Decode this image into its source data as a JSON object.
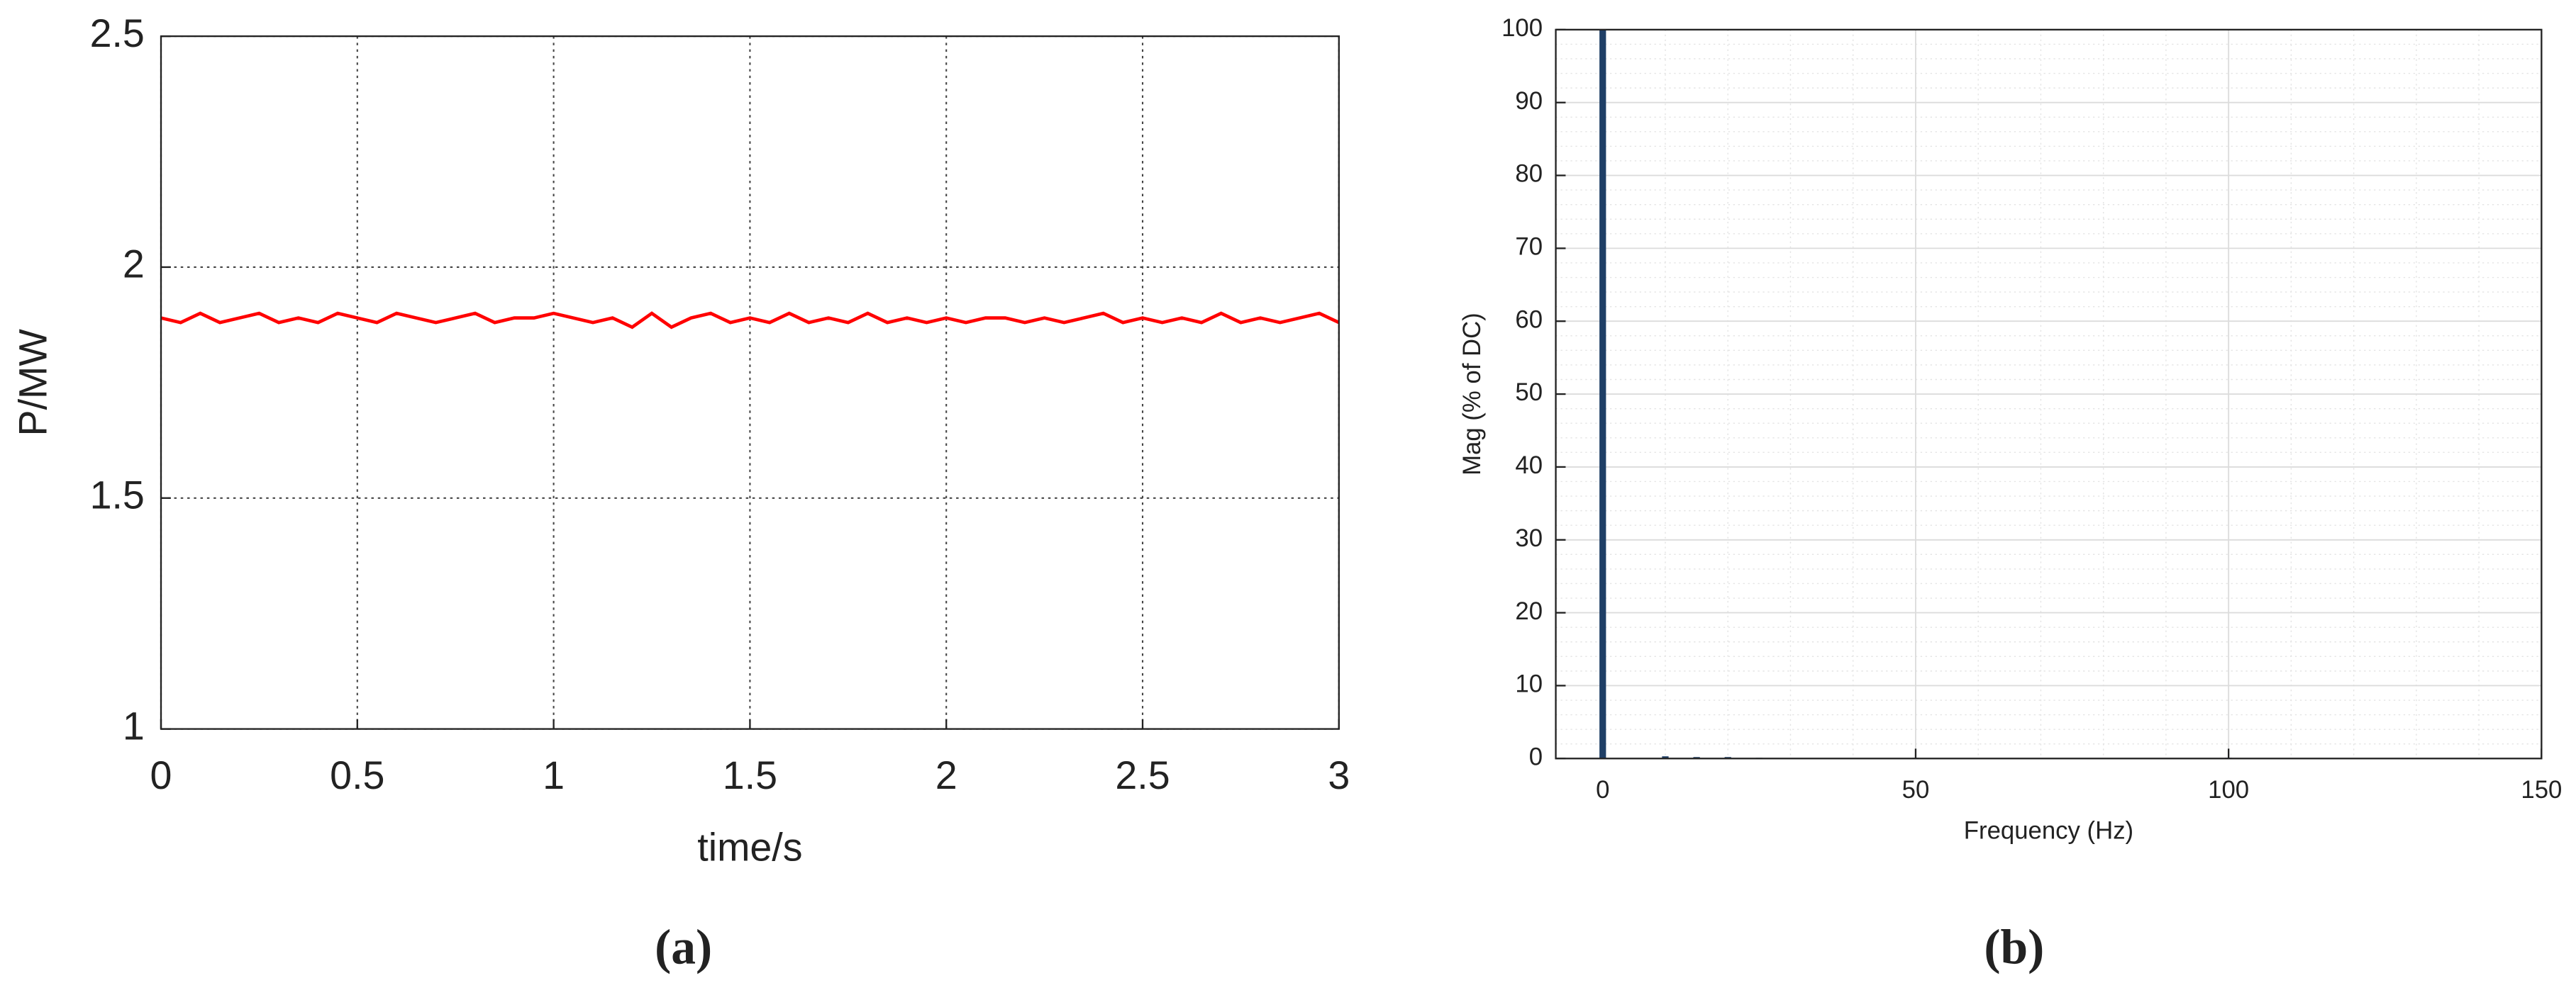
{
  "chart_data": [
    {
      "type": "line",
      "caption": "(a)",
      "xlabel": "time/s",
      "ylabel": "P/MW",
      "x": [
        0,
        0.05,
        0.1,
        0.15,
        0.2,
        0.25,
        0.3,
        0.35,
        0.4,
        0.45,
        0.5,
        0.55,
        0.6,
        0.65,
        0.7,
        0.75,
        0.8,
        0.85,
        0.9,
        0.95,
        1,
        1.05,
        1.1,
        1.15,
        1.2,
        1.25,
        1.3,
        1.35,
        1.4,
        1.45,
        1.5,
        1.55,
        1.6,
        1.65,
        1.7,
        1.75,
        1.8,
        1.85,
        1.9,
        1.95,
        2,
        2.05,
        2.1,
        2.15,
        2.2,
        2.25,
        2.3,
        2.35,
        2.4,
        2.45,
        2.5,
        2.55,
        2.6,
        2.65,
        2.7,
        2.75,
        2.8,
        2.85,
        2.9,
        2.95,
        3
      ],
      "series": [
        {
          "name": "P",
          "color": "#ff0000",
          "values": [
            1.89,
            1.88,
            1.9,
            1.88,
            1.89,
            1.9,
            1.88,
            1.89,
            1.88,
            1.9,
            1.89,
            1.88,
            1.9,
            1.89,
            1.88,
            1.89,
            1.9,
            1.88,
            1.89,
            1.89,
            1.9,
            1.89,
            1.88,
            1.89,
            1.87,
            1.9,
            1.87,
            1.89,
            1.9,
            1.88,
            1.89,
            1.88,
            1.9,
            1.88,
            1.89,
            1.88,
            1.9,
            1.88,
            1.89,
            1.88,
            1.89,
            1.88,
            1.89,
            1.89,
            1.88,
            1.89,
            1.88,
            1.89,
            1.9,
            1.88,
            1.89,
            1.88,
            1.89,
            1.88,
            1.9,
            1.88,
            1.89,
            1.88,
            1.89,
            1.9,
            1.88
          ]
        }
      ],
      "xlim": [
        0,
        3
      ],
      "ylim": [
        1,
        2.5
      ],
      "xticks": [
        0,
        0.5,
        1,
        1.5,
        2,
        2.5,
        3
      ],
      "yticks": [
        1,
        1.5,
        2,
        2.5
      ],
      "grid": "dotted"
    },
    {
      "type": "bar",
      "caption": "(b)",
      "xlabel": "Frequency (Hz)",
      "ylabel": "Mag (% of DC)",
      "x": [
        0,
        10,
        15,
        20,
        25,
        50,
        100
      ],
      "series": [
        {
          "name": "Mag",
          "color": "#1f3f66",
          "values": [
            100,
            0.3,
            0.2,
            0.2,
            0.1,
            0.1,
            0.1
          ]
        }
      ],
      "xlim": [
        -7.5,
        150
      ],
      "ylim": [
        0,
        100
      ],
      "xticks": [
        0,
        50,
        100,
        150
      ],
      "yticks": [
        0,
        10,
        20,
        30,
        40,
        50,
        60,
        70,
        80,
        90,
        100
      ],
      "grid": "solid",
      "minor_grid": true
    }
  ]
}
